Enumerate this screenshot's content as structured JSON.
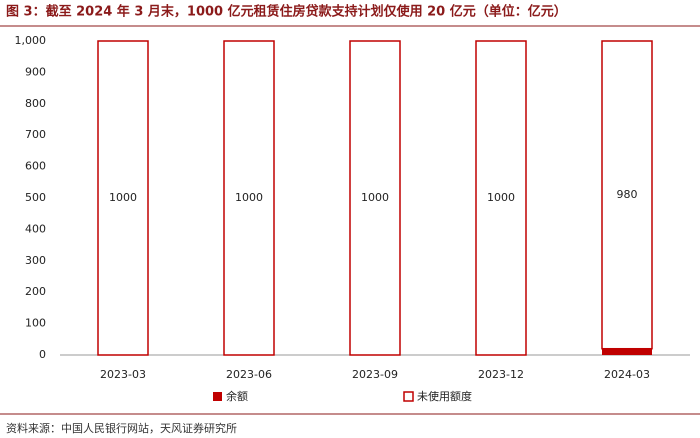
{
  "chart_data": {
    "type": "stacked_bar",
    "title": "图 3：截至 2024 年 3 月末，1000 亿元租赁住房贷款支持计划仅使用 20 亿元（单位：亿元）",
    "source": "资料来源：中国人民银行网站，天风证券研究所",
    "categories": [
      "2023-03",
      "2023-06",
      "2023-09",
      "2023-12",
      "2024-03"
    ],
    "series": [
      {
        "name": "余额",
        "color": "#c00000",
        "style": "filled",
        "values": [
          0,
          0,
          0,
          0,
          20
        ]
      },
      {
        "name": "未使用额度",
        "color": "#c00000",
        "style": "outline",
        "values": [
          1000,
          1000,
          1000,
          1000,
          980
        ]
      }
    ],
    "data_labels_series": 1,
    "ylim": [
      0,
      1000
    ],
    "yticks": [
      0,
      100,
      200,
      300,
      400,
      500,
      600,
      700,
      800,
      900,
      {
        "value": 1000,
        "label": "1,000"
      }
    ],
    "legend": "bottom"
  }
}
